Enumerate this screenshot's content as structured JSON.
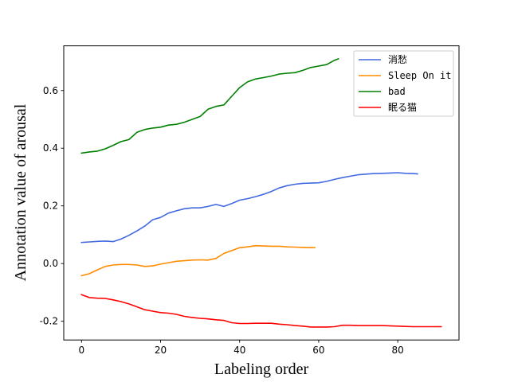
{
  "chart_data": {
    "type": "line",
    "xlabel": "Labeling order",
    "ylabel": "Annotation value of arousal",
    "xlim": [
      -4.5,
      95.5
    ],
    "ylim": [
      -0.265,
      0.755
    ],
    "xticks": [
      0,
      20,
      40,
      60,
      80
    ],
    "xtick_labels": [
      "0",
      "20",
      "40",
      "60",
      "80"
    ],
    "yticks": [
      -0.2,
      0.0,
      0.2,
      0.4,
      0.6
    ],
    "ytick_labels": [
      "-0.2",
      "0.0",
      "0.2",
      "0.4",
      "0.6"
    ],
    "grid": false,
    "legend_position": "top-right",
    "series": [
      {
        "name": "消愁",
        "color": "#4169E1",
        "x": [
          0,
          2,
          4,
          6,
          8,
          10,
          12,
          14,
          16,
          18,
          20,
          22,
          24,
          26,
          28,
          30,
          32,
          34,
          36,
          38,
          40,
          42,
          44,
          46,
          48,
          50,
          52,
          54,
          56,
          58,
          60,
          62,
          64,
          66,
          68,
          70,
          72,
          74,
          76,
          78,
          80,
          82,
          84,
          85
        ],
        "y": [
          0.073,
          0.075,
          0.077,
          0.078,
          0.076,
          0.085,
          0.098,
          0.113,
          0.13,
          0.152,
          0.16,
          0.175,
          0.183,
          0.19,
          0.193,
          0.193,
          0.198,
          0.205,
          0.198,
          0.208,
          0.22,
          0.225,
          0.232,
          0.24,
          0.25,
          0.262,
          0.27,
          0.275,
          0.278,
          0.279,
          0.28,
          0.285,
          0.292,
          0.298,
          0.303,
          0.308,
          0.31,
          0.312,
          0.313,
          0.314,
          0.315,
          0.313,
          0.312,
          0.311
        ]
      },
      {
        "name": "Sleep On it",
        "color": "#FF8C00",
        "x": [
          0,
          2,
          4,
          6,
          8,
          10,
          12,
          14,
          16,
          18,
          20,
          22,
          24,
          26,
          28,
          30,
          32,
          34,
          36,
          38,
          40,
          42,
          44,
          46,
          48,
          50,
          52,
          54,
          56,
          58,
          59
        ],
        "y": [
          -0.042,
          -0.035,
          -0.022,
          -0.01,
          -0.005,
          -0.003,
          -0.003,
          -0.005,
          -0.01,
          -0.008,
          -0.002,
          0.003,
          0.008,
          0.01,
          0.012,
          0.013,
          0.012,
          0.018,
          0.035,
          0.045,
          0.055,
          0.058,
          0.062,
          0.061,
          0.06,
          0.06,
          0.058,
          0.057,
          0.056,
          0.055,
          0.055
        ]
      },
      {
        "name": "bad",
        "color": "#008000",
        "x": [
          0,
          2,
          4,
          6,
          8,
          10,
          12,
          14,
          16,
          18,
          20,
          22,
          24,
          26,
          28,
          30,
          32,
          34,
          36,
          38,
          40,
          42,
          44,
          46,
          48,
          50,
          52,
          54,
          56,
          58,
          60,
          62,
          64,
          65
        ],
        "y": [
          0.383,
          0.387,
          0.39,
          0.398,
          0.41,
          0.423,
          0.43,
          0.455,
          0.465,
          0.47,
          0.473,
          0.48,
          0.483,
          0.49,
          0.5,
          0.51,
          0.535,
          0.545,
          0.55,
          0.58,
          0.61,
          0.63,
          0.64,
          0.645,
          0.65,
          0.657,
          0.66,
          0.662,
          0.67,
          0.68,
          0.685,
          0.69,
          0.705,
          0.71
        ]
      },
      {
        "name": "眠る猫",
        "color": "#FF0000",
        "x": [
          0,
          2,
          4,
          6,
          8,
          10,
          12,
          14,
          16,
          18,
          20,
          22,
          24,
          26,
          28,
          30,
          32,
          34,
          36,
          38,
          40,
          42,
          44,
          46,
          48,
          50,
          52,
          54,
          56,
          58,
          60,
          62,
          64,
          66,
          68,
          70,
          72,
          74,
          76,
          78,
          80,
          82,
          84,
          86,
          88,
          90,
          91
        ],
        "y": [
          -0.108,
          -0.118,
          -0.12,
          -0.121,
          -0.126,
          -0.132,
          -0.14,
          -0.15,
          -0.16,
          -0.165,
          -0.17,
          -0.172,
          -0.176,
          -0.183,
          -0.187,
          -0.19,
          -0.192,
          -0.195,
          -0.197,
          -0.205,
          -0.208,
          -0.208,
          -0.207,
          -0.207,
          -0.207,
          -0.21,
          -0.212,
          -0.215,
          -0.217,
          -0.22,
          -0.22,
          -0.22,
          -0.219,
          -0.214,
          -0.214,
          -0.215,
          -0.215,
          -0.215,
          -0.215,
          -0.216,
          -0.217,
          -0.218,
          -0.219,
          -0.219,
          -0.219,
          -0.219,
          -0.219
        ]
      }
    ]
  }
}
